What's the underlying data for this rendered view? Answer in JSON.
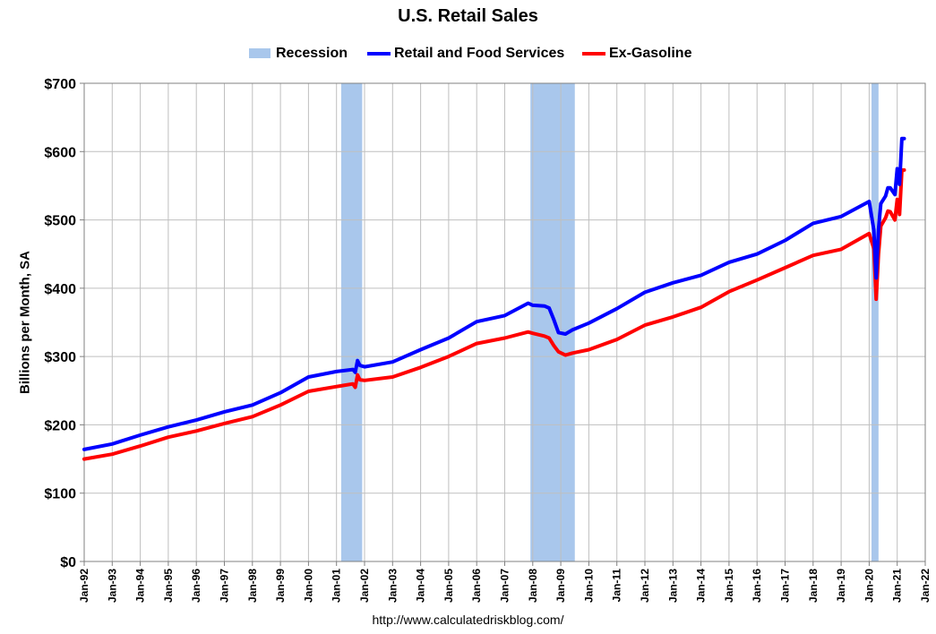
{
  "chart_data": {
    "type": "line",
    "title": "U.S. Retail Sales",
    "ylabel": "Billions per Month, SA",
    "xlabel": "",
    "source": "http://www.calculatedriskblog.com/",
    "ylim": [
      0,
      700
    ],
    "y_ticks": [
      "$0",
      "$100",
      "$200",
      "$300",
      "$400",
      "$500",
      "$600",
      "$700"
    ],
    "xlim": [
      "Jan-92",
      "Jan-22"
    ],
    "x_ticks": [
      "Jan-92",
      "Jan-93",
      "Jan-94",
      "Jan-95",
      "Jan-96",
      "Jan-97",
      "Jan-98",
      "Jan-99",
      "Jan-00",
      "Jan-01",
      "Jan-02",
      "Jan-03",
      "Jan-04",
      "Jan-05",
      "Jan-06",
      "Jan-07",
      "Jan-08",
      "Jan-09",
      "Jan-10",
      "Jan-11",
      "Jan-12",
      "Jan-13",
      "Jan-14",
      "Jan-15",
      "Jan-16",
      "Jan-17",
      "Jan-18",
      "Jan-19",
      "Jan-20",
      "Jan-21",
      "Jan-22"
    ],
    "grid": true,
    "legend_position": "top",
    "recession_label": "Recession",
    "recession_color": "#a9c7ec",
    "recessions": [
      {
        "start": "Mar-01",
        "end": "Nov-01"
      },
      {
        "start": "Dec-07",
        "end": "Jun-09"
      },
      {
        "start": "Feb-20",
        "end": "Apr-20"
      }
    ],
    "series": [
      {
        "name": "Retail and Food Services",
        "color": "#0000ff",
        "points": [
          [
            "Jan-92",
            164
          ],
          [
            "Jan-93",
            172
          ],
          [
            "Jan-94",
            185
          ],
          [
            "Jan-95",
            197
          ],
          [
            "Jan-96",
            207
          ],
          [
            "Jan-97",
            219
          ],
          [
            "Jan-98",
            229
          ],
          [
            "Jan-99",
            247
          ],
          [
            "Jan-00",
            270
          ],
          [
            "Jan-01",
            278
          ],
          [
            "Aug-01",
            281
          ],
          [
            "Sep-01",
            277
          ],
          [
            "Oct-01",
            294
          ],
          [
            "Nov-01",
            287
          ],
          [
            "Jan-02",
            285
          ],
          [
            "Jan-03",
            292
          ],
          [
            "Jan-04",
            310
          ],
          [
            "Jan-05",
            327
          ],
          [
            "Jan-06",
            351
          ],
          [
            "Jan-07",
            360
          ],
          [
            "Nov-07",
            378
          ],
          [
            "Jan-08",
            375
          ],
          [
            "Jun-08",
            374
          ],
          [
            "Aug-08",
            371
          ],
          [
            "Oct-08",
            354
          ],
          [
            "Dec-08",
            335
          ],
          [
            "Mar-09",
            333
          ],
          [
            "Jun-09",
            339
          ],
          [
            "Jan-10",
            349
          ],
          [
            "Jan-11",
            370
          ],
          [
            "Jan-12",
            394
          ],
          [
            "Jan-13",
            408
          ],
          [
            "Jan-14",
            419
          ],
          [
            "Jan-15",
            438
          ],
          [
            "Jan-16",
            450
          ],
          [
            "Jan-17",
            470
          ],
          [
            "Jan-18",
            495
          ],
          [
            "Jan-19",
            505
          ],
          [
            "Jan-20",
            527
          ],
          [
            "Mar-20",
            485
          ],
          [
            "Apr-20",
            415
          ],
          [
            "May-20",
            486
          ],
          [
            "Jun-20",
            524
          ],
          [
            "Aug-20",
            535
          ],
          [
            "Sep-20",
            547
          ],
          [
            "Oct-20",
            547
          ],
          [
            "Dec-20",
            537
          ],
          [
            "Jan-21",
            575
          ],
          [
            "Feb-21",
            552
          ],
          [
            "Mar-21",
            619
          ],
          [
            "Apr-21",
            619
          ]
        ]
      },
      {
        "name": "Ex-Gasoline",
        "color": "#ff0000",
        "points": [
          [
            "Jan-92",
            150
          ],
          [
            "Jan-93",
            157
          ],
          [
            "Jan-94",
            169
          ],
          [
            "Jan-95",
            182
          ],
          [
            "Jan-96",
            191
          ],
          [
            "Jan-97",
            202
          ],
          [
            "Jan-98",
            212
          ],
          [
            "Jan-99",
            229
          ],
          [
            "Jan-00",
            249
          ],
          [
            "Jan-01",
            256
          ],
          [
            "Aug-01",
            260
          ],
          [
            "Sep-01",
            255
          ],
          [
            "Oct-01",
            273
          ],
          [
            "Nov-01",
            266
          ],
          [
            "Jan-02",
            265
          ],
          [
            "Jan-03",
            270
          ],
          [
            "Jan-04",
            284
          ],
          [
            "Jan-05",
            300
          ],
          [
            "Jan-06",
            319
          ],
          [
            "Jan-07",
            327
          ],
          [
            "Nov-07",
            336
          ],
          [
            "Jan-08",
            334
          ],
          [
            "Jun-08",
            330
          ],
          [
            "Aug-08",
            327
          ],
          [
            "Oct-08",
            316
          ],
          [
            "Dec-08",
            307
          ],
          [
            "Mar-09",
            302
          ],
          [
            "Jun-09",
            305
          ],
          [
            "Jan-10",
            310
          ],
          [
            "Jan-11",
            325
          ],
          [
            "Jan-12",
            346
          ],
          [
            "Jan-13",
            358
          ],
          [
            "Jan-14",
            372
          ],
          [
            "Jan-15",
            395
          ],
          [
            "Jan-16",
            412
          ],
          [
            "Jan-17",
            430
          ],
          [
            "Jan-18",
            448
          ],
          [
            "Jan-19",
            457
          ],
          [
            "Jan-20",
            480
          ],
          [
            "Mar-20",
            458
          ],
          [
            "Apr-20",
            384
          ],
          [
            "May-20",
            450
          ],
          [
            "Jun-20",
            491
          ],
          [
            "Aug-20",
            503
          ],
          [
            "Sep-20",
            513
          ],
          [
            "Oct-20",
            512
          ],
          [
            "Dec-20",
            500
          ],
          [
            "Jan-21",
            530
          ],
          [
            "Feb-21",
            508
          ],
          [
            "Mar-21",
            573
          ],
          [
            "Apr-21",
            573
          ]
        ]
      }
    ]
  }
}
